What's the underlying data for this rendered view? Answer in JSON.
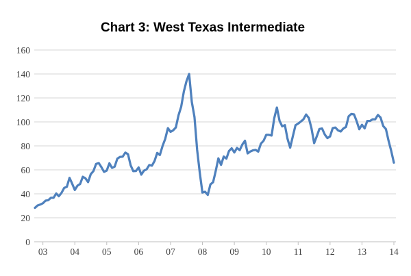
{
  "title": "Chart 3: West Texas Intermediate",
  "colors": {
    "background": "#ffffff",
    "line": "#4f81bd",
    "gridline": "#d6d6d6",
    "axis": "#bfbfbf",
    "tick_label": "#404040",
    "title_text": "#000000"
  },
  "chart_data": {
    "type": "line",
    "title": "Chart 3: West Texas Intermediate",
    "xlabel": "",
    "ylabel": "",
    "grid": true,
    "legend": false,
    "ylim": [
      0,
      160
    ],
    "y_ticks": [
      0,
      20,
      40,
      60,
      80,
      100,
      120,
      140,
      160
    ],
    "x_tick_labels": [
      "03",
      "04",
      "05",
      "06",
      "07",
      "08",
      "09",
      "10",
      "11",
      "12",
      "13",
      "14"
    ],
    "x_tick_month_indices": [
      3,
      15,
      27,
      39,
      51,
      63,
      75,
      87,
      99,
      111,
      123,
      135
    ],
    "x_start": "2003-09",
    "frequency": "monthly",
    "x_tick_note": "year labels mark December of each year",
    "series": [
      {
        "name": "West Texas Intermediate",
        "values": [
          28.3,
          30.3,
          31.1,
          32.1,
          34.3,
          34.7,
          36.7,
          36.7,
          40.3,
          38.0,
          40.8,
          44.9,
          45.9,
          53.3,
          48.5,
          43.2,
          46.8,
          48.2,
          54.2,
          53.0,
          49.8,
          56.4,
          59.0,
          65.0,
          65.6,
          62.3,
          58.3,
          59.4,
          65.5,
          61.6,
          62.7,
          69.4,
          70.8,
          71.0,
          74.4,
          73.0,
          63.8,
          58.9,
          59.1,
          62.0,
          56.0,
          59.3,
          60.4,
          64.0,
          63.5,
          67.5,
          74.1,
          72.4,
          79.9,
          85.8,
          94.8,
          91.7,
          93.0,
          95.4,
          105.5,
          112.6,
          125.4,
          133.9,
          140.0,
          116.7,
          104.1,
          76.6,
          57.3,
          41.1,
          41.7,
          39.1,
          47.9,
          49.7,
          59.0,
          69.6,
          64.2,
          71.1,
          69.4,
          75.7,
          78.0,
          74.5,
          78.3,
          76.4,
          81.2,
          84.3,
          73.7,
          75.3,
          76.3,
          76.6,
          75.2,
          81.9,
          84.3,
          89.2,
          89.2,
          88.6,
          102.9,
          112.0,
          100.9,
          96.3,
          97.3,
          86.0,
          78.5,
          88.0,
          97.2,
          98.6,
          100.3,
          102.2,
          106.2,
          103.3,
          94.7,
          82.3,
          87.9,
          94.1,
          94.5,
          89.5,
          86.5,
          87.9,
          94.8,
          95.3,
          92.9,
          92.0,
          94.5,
          95.8,
          104.7,
          106.6,
          106.3,
          100.5,
          93.9,
          97.6,
          94.6,
          100.8,
          100.8,
          102.1,
          102.2,
          105.8,
          103.6,
          96.5,
          94.0,
          84.4,
          75.8,
          66.0
        ]
      }
    ]
  }
}
